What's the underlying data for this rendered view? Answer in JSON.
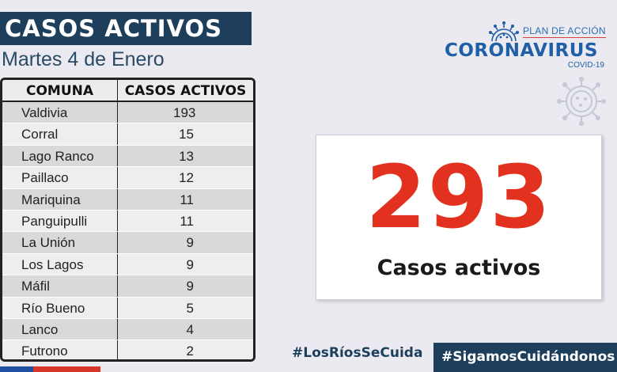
{
  "header": {
    "title": "CASOS ACTIVOS",
    "date": "Martes 4 de Enero"
  },
  "table": {
    "columns": [
      "COMUNA",
      "CASOS ACTIVOS"
    ],
    "rows": [
      {
        "comuna": "Valdivia",
        "casos": "193"
      },
      {
        "comuna": "Corral",
        "casos": "15"
      },
      {
        "comuna": "Lago Ranco",
        "casos": "13"
      },
      {
        "comuna": "Paillaco",
        "casos": "12"
      },
      {
        "comuna": "Mariquina",
        "casos": "11"
      },
      {
        "comuna": "Panguipulli",
        "casos": "11"
      },
      {
        "comuna": "La Unión",
        "casos": "9"
      },
      {
        "comuna": "Los Lagos",
        "casos": "9"
      },
      {
        "comuna": "Máfil",
        "casos": "9"
      },
      {
        "comuna": "Río Bueno",
        "casos": "5"
      },
      {
        "comuna": "Lanco",
        "casos": "4"
      },
      {
        "comuna": "Futrono",
        "casos": "2"
      }
    ]
  },
  "logo": {
    "plan": "PLAN DE ACCIÓN",
    "main": "CORONAVIRUS",
    "sub": "COVID-19",
    "icon": "virus-icon"
  },
  "summary": {
    "total": "293",
    "label": "Casos activos"
  },
  "hashtags": {
    "tag1": "#LosRíosSeCuida",
    "tag2": "#SigamosCuidándonos"
  },
  "colors": {
    "navy": "#1e3f5c",
    "red": "#e2321f",
    "logo_blue": "#1f5fa8",
    "background": "#eaeaf0"
  }
}
